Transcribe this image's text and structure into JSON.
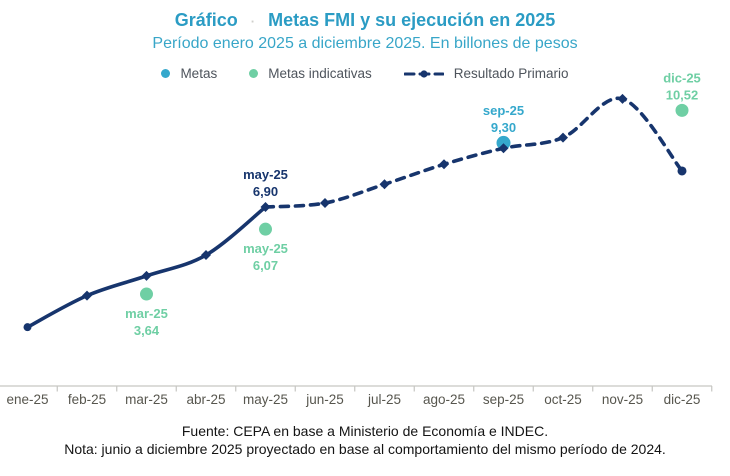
{
  "header": {
    "label": "Gráfico",
    "separator": "·",
    "title": "Metas FMI y su ejecución en 2025",
    "subtitle": "Período enero 2025 a diciembre 2025. En billones de pesos"
  },
  "legend": {
    "items": [
      {
        "label": "Metas",
        "marker": "dot",
        "color": "#35a8cc"
      },
      {
        "label": "Metas indicativas",
        "marker": "dot",
        "color": "#6fcfa4"
      },
      {
        "label": "Resultado Primario",
        "marker": "dashed-line",
        "color": "#17356d"
      }
    ]
  },
  "footer": {
    "source": "Fuente: CEPA en base a Ministerio de Economía e INDEC.",
    "note": "Nota: junio a diciembre 2025 proyectado en base al comportamiento del mismo período de 2024."
  },
  "colors": {
    "navy": "#17356d",
    "teal": "#35a8cc",
    "green": "#6fcfa4",
    "title": "#2b9cc4",
    "subtitle": "#38a6c8",
    "legendText": "#4e545c",
    "axisText": "#57564e",
    "axisLine": "#c6c6c2"
  },
  "chart_data": {
    "type": "line",
    "title": "Metas FMI y su ejecución en 2025",
    "subtitle": "Período enero 2025 a diciembre 2025. En billones de pesos",
    "unit": "billones de pesos",
    "categories": [
      "ene-25",
      "feb-25",
      "mar-25",
      "abr-25",
      "may-25",
      "jun-25",
      "jul-25",
      "ago-25",
      "sep-25",
      "oct-25",
      "nov-25",
      "dic-25"
    ],
    "x_axis": {
      "position": "bottom",
      "ticks": "between-categories"
    },
    "y_axis": {
      "visible": false,
      "implied_range": [
        2,
        11.5
      ]
    },
    "grid": false,
    "legend_position": "top",
    "series": [
      {
        "name": "Resultado Primario",
        "type": "line",
        "color": "#17356d",
        "line_style": {
          "solid_range": [
            "ene-25",
            "may-25"
          ],
          "dashed_range": [
            "may-25",
            "dic-25"
          ]
        },
        "values": [
          2.4,
          3.58,
          4.32,
          5.1,
          6.9,
          7.05,
          7.75,
          8.5,
          9.1,
          9.5,
          10.95,
          8.25
        ]
      },
      {
        "name": "Metas",
        "type": "scatter",
        "color": "#35a8cc",
        "points": [
          {
            "x": "sep-25",
            "y": 9.3
          }
        ]
      },
      {
        "name": "Metas indicativas",
        "type": "scatter",
        "color": "#6fcfa4",
        "points": [
          {
            "x": "mar-25",
            "y": 3.64
          },
          {
            "x": "may-25",
            "y": 6.07
          },
          {
            "x": "dic-25",
            "y": 10.52
          }
        ]
      }
    ],
    "data_labels": [
      {
        "series": "Resultado Primario",
        "x": "may-25",
        "lines": [
          "may-25",
          "6,90"
        ],
        "color": "#17356d",
        "placement": "above"
      },
      {
        "series": "Metas",
        "x": "sep-25",
        "lines": [
          "sep-25",
          "9,30"
        ],
        "color": "#35a8cc",
        "placement": "above"
      },
      {
        "series": "Metas indicativas",
        "x": "mar-25",
        "lines": [
          "mar-25",
          "3,64"
        ],
        "color": "#6fcfa4",
        "placement": "below"
      },
      {
        "series": "Metas indicativas",
        "x": "may-25",
        "lines": [
          "may-25",
          "6,07"
        ],
        "color": "#6fcfa4",
        "placement": "below"
      },
      {
        "series": "Metas indicativas",
        "x": "dic-25",
        "lines": [
          "dic-25",
          "10,52"
        ],
        "color": "#6fcfa4",
        "placement": "above"
      }
    ]
  }
}
